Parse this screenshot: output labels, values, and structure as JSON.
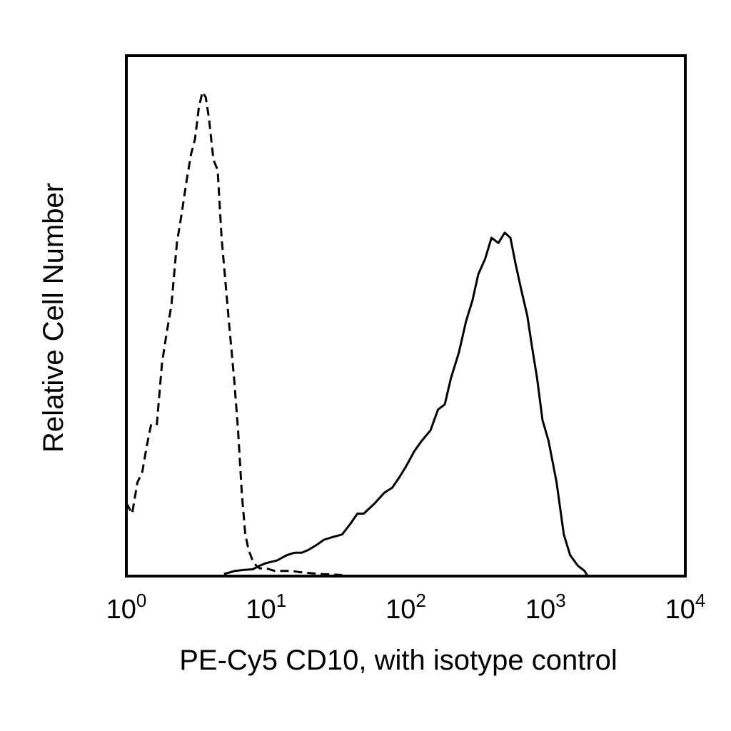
{
  "chart_data": {
    "type": "line",
    "title": "",
    "xlabel": "PE-Cy5 CD10, with isotype control",
    "ylabel": "Relative Cell Number",
    "x_scale": "log",
    "xlim": [
      1,
      10000
    ],
    "ylim": [
      0,
      100
    ],
    "grid": false,
    "legend": "none",
    "x_ticks": [
      {
        "base": "10",
        "exp": "0"
      },
      {
        "base": "10",
        "exp": "1"
      },
      {
        "base": "10",
        "exp": "2"
      },
      {
        "base": "10",
        "exp": "3"
      },
      {
        "base": "10",
        "exp": "4"
      }
    ],
    "series": [
      {
        "style": "dashed",
        "color": "#000000",
        "x": [
          1.0,
          1.1,
          1.2,
          1.3,
          1.4,
          1.5,
          1.65,
          1.8,
          1.95,
          2.1,
          2.3,
          2.5,
          2.7,
          2.9,
          3.1,
          3.3,
          3.5,
          3.7,
          3.9,
          4.2,
          4.5,
          4.8,
          5.1,
          5.5,
          5.9,
          6.3,
          6.7,
          7.1,
          7.5,
          8.0,
          8.5,
          9.0,
          10.0,
          11.5,
          13.0,
          15.0,
          17.0,
          20.0,
          25.0,
          35.0
        ],
        "y": [
          14,
          12,
          18,
          20,
          25,
          29,
          29,
          41,
          47,
          52,
          64,
          70,
          76,
          81,
          84,
          90,
          93,
          92,
          88,
          80,
          78,
          65,
          57,
          47,
          38,
          28,
          16,
          8,
          5,
          3,
          2,
          1.5,
          1.5,
          1,
          1,
          1,
          0.8,
          0.6,
          0.4,
          0.2
        ]
      },
      {
        "style": "solid",
        "color": "#000000",
        "x": [
          5,
          6,
          7,
          8,
          9,
          10,
          12,
          14,
          16,
          18,
          20,
          23,
          26,
          30,
          35,
          40,
          45,
          50,
          60,
          70,
          80,
          90,
          100,
          115,
          130,
          150,
          170,
          190,
          210,
          240,
          270,
          300,
          330,
          370,
          410,
          460,
          510,
          560,
          610,
          670,
          740,
          800,
          870,
          950,
          1050,
          1200,
          1350,
          1500,
          1700,
          1900,
          2000
        ],
        "y": [
          0.4,
          1,
          1.2,
          1.3,
          2,
          2.5,
          3,
          4,
          4.5,
          4.5,
          5,
          6,
          7,
          7.5,
          8,
          10,
          12,
          12,
          14,
          16,
          17,
          19,
          21,
          24,
          26,
          28,
          32,
          33,
          38,
          43,
          49,
          53,
          58,
          61,
          65,
          64,
          66,
          65,
          60,
          55,
          50,
          44,
          38,
          30,
          26,
          18,
          8,
          4,
          2,
          1,
          0
        ]
      }
    ]
  }
}
